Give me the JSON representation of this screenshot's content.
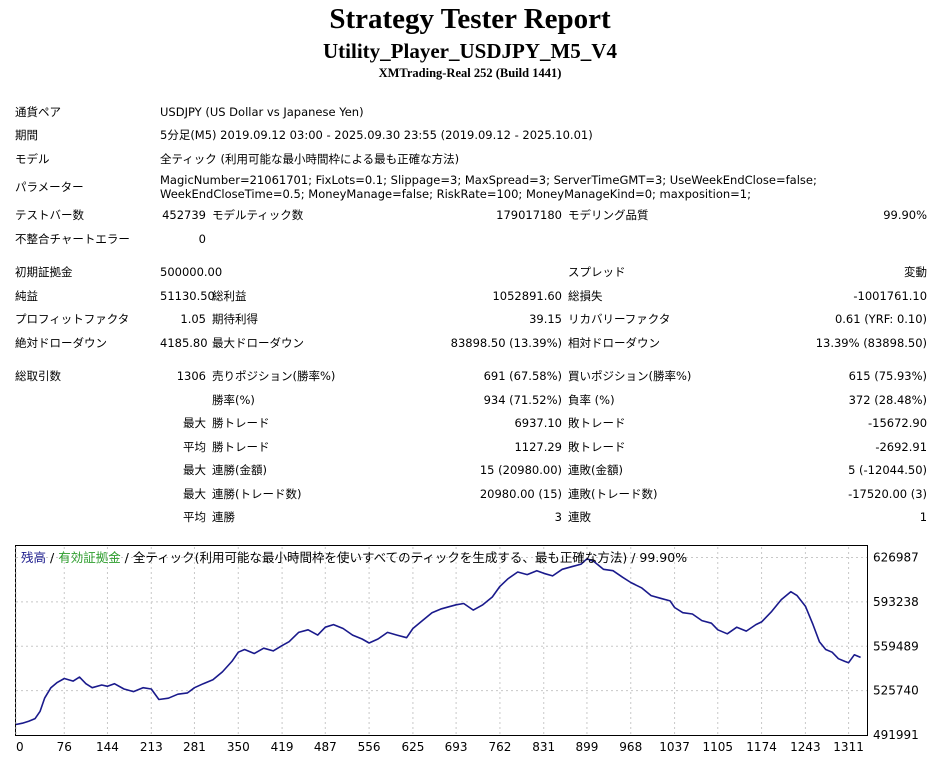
{
  "header": {
    "title": "Strategy Tester Report",
    "subtitle": "Utility_Player_USDJPY_M5_V4",
    "server": "XMTrading-Real 252 (Build 1441)"
  },
  "info": {
    "symbol_label": "通貨ペア",
    "symbol_value": "USDJPY (US Dollar vs Japanese Yen)",
    "period_label": "期間",
    "period_value": "5分足(M5) 2019.09.12 03:00 - 2025.09.30 23:55 (2019.09.12 - 2025.10.01)",
    "model_label": "モデル",
    "model_value": "全ティック (利用可能な最小時間枠による最も正確な方法)",
    "params_label": "パラメーター",
    "params_line1": "MagicNumber=21061701; FixLots=0.1; Slippage=3; MaxSpread=3; ServerTimeGMT=3; UseWeekEndClose=false;",
    "params_line2": "WeekEndCloseTime=0.5; MoneyManage=false; RiskRate=100; MoneyManageKind=0; maxposition=1;"
  },
  "stats": {
    "bars_label": "テストバー数",
    "bars_value": "452739",
    "ticks_label": "モデルティック数",
    "ticks_value": "179017180",
    "quality_label": "モデリング品質",
    "quality_value": "99.90%",
    "mismatch_label": "不整合チャートエラー",
    "mismatch_value": "0",
    "deposit_label": "初期証拠金",
    "deposit_value": "500000.00",
    "spread_label": "スプレッド",
    "spread_value": "変動",
    "net_label": "純益",
    "net_value": "51130.50",
    "gross_profit_label": "総利益",
    "gross_profit_value": "1052891.60",
    "gross_loss_label": "総損失",
    "gross_loss_value": "-1001761.10",
    "pf_label": "プロフィットファクタ",
    "pf_value": "1.05",
    "payoff_label": "期待利得",
    "payoff_value": "39.15",
    "recovery_label": "リカバリーファクタ",
    "recovery_value": "0.61 (YRF: 0.10)",
    "abs_dd_label": "絶対ドローダウン",
    "abs_dd_value": "4185.80",
    "max_dd_label": "最大ドローダウン",
    "max_dd_value": "83898.50 (13.39%)",
    "rel_dd_label": "相対ドローダウン",
    "rel_dd_value": "13.39% (83898.50)",
    "trades_label": "総取引数",
    "trades_value": "1306",
    "short_label": "売りポジション(勝率%)",
    "short_value": "691 (67.58%)",
    "long_label": "買いポジション(勝率%)",
    "long_value": "615 (75.93%)",
    "win_rate_label": "勝率(%)",
    "win_rate_value": "934 (71.52%)",
    "loss_rate_label": "負率 (%)",
    "loss_rate_value": "372 (28.48%)",
    "max_label": "最大",
    "avg_label": "平均",
    "largest_win_label": "勝トレード",
    "largest_win_value": "6937.10",
    "largest_loss_label": "敗トレード",
    "largest_loss_value": "-15672.90",
    "avg_win_label": "勝トレード",
    "avg_win_value": "1127.29",
    "avg_loss_label": "敗トレード",
    "avg_loss_value": "-2692.91",
    "max_cons_wins_label": "連勝(金額)",
    "max_cons_wins_value": "15 (20980.00)",
    "max_cons_losses_label": "連敗(金額)",
    "max_cons_losses_value": "5 (-12044.50)",
    "max_cons_profit_label": "連勝(トレード数)",
    "max_cons_profit_value": "20980.00 (15)",
    "max_cons_loss_label": "連敗(トレード数)",
    "max_cons_loss_value": "-17520.00 (3)",
    "avg_cons_wins_label": "連勝",
    "avg_cons_wins_value": "3",
    "avg_cons_losses_label": "連敗",
    "avg_cons_losses_value": "1"
  },
  "chart_legend": {
    "balance": "残高",
    "sep1": " / ",
    "equity": "有効証拠金",
    "sep2": " / ",
    "model": "全ティック(利用可能な最小時間枠を使いすべてのティックを生成する、最も正確な方法) / 99.90%"
  },
  "colors": {
    "balance_line": "#1a1a8c",
    "equity_label": "#2e9e2e",
    "balance_label": "#1a1a8c",
    "grid": "#c8c8c8"
  },
  "chart_data": {
    "type": "line",
    "title": "",
    "xlabel": "",
    "ylabel": "",
    "x_ticks": [
      0,
      76,
      144,
      213,
      281,
      350,
      419,
      487,
      556,
      625,
      693,
      762,
      831,
      899,
      968,
      1037,
      1105,
      1174,
      1243,
      1311
    ],
    "y_ticks": [
      626987,
      593238,
      559489,
      525740,
      491991
    ],
    "xlim": [
      0,
      1340
    ],
    "ylim": [
      491991,
      635000
    ],
    "grid": true,
    "series": [
      {
        "x": [
          0,
          10,
          20,
          30,
          38,
          45,
          55,
          65,
          76,
          90,
          100,
          110,
          120,
          135,
          144,
          155,
          170,
          185,
          200,
          213,
          225,
          240,
          255,
          270,
          281,
          295,
          310,
          325,
          340,
          350,
          360,
          375,
          390,
          405,
          419,
          430,
          445,
          460,
          475,
          487,
          500,
          515,
          530,
          545,
          556,
          570,
          585,
          600,
          615,
          625,
          640,
          655,
          670,
          685,
          693,
          705,
          720,
          735,
          750,
          762,
          775,
          790,
          805,
          820,
          831,
          845,
          860,
          875,
          890,
          899,
          910,
          925,
          940,
          955,
          968,
          985,
          1000,
          1015,
          1030,
          1037,
          1050,
          1065,
          1080,
          1095,
          1105,
          1120,
          1135,
          1150,
          1165,
          1174,
          1190,
          1205,
          1220,
          1230,
          1243,
          1255,
          1265,
          1275,
          1285,
          1295,
          1305,
          1311,
          1320,
          1330
        ],
        "y": [
          500000,
          501000,
          502500,
          504500,
          510000,
          520000,
          528000,
          532000,
          535000,
          533000,
          536000,
          531000,
          528000,
          530000,
          529000,
          531000,
          527000,
          525000,
          528000,
          527000,
          519000,
          520000,
          523000,
          524000,
          528000,
          531000,
          534000,
          540000,
          548000,
          555000,
          557000,
          554000,
          558000,
          556000,
          560000,
          563000,
          570000,
          572000,
          568000,
          574000,
          576000,
          573000,
          568000,
          565000,
          562000,
          565000,
          570000,
          568000,
          566000,
          573000,
          579000,
          585000,
          588000,
          590000,
          591000,
          592000,
          587000,
          591000,
          597000,
          605000,
          611000,
          616000,
          614000,
          617000,
          615000,
          613000,
          618000,
          620000,
          622000,
          626000,
          624000,
          618000,
          617000,
          612000,
          608000,
          604000,
          598000,
          596000,
          594000,
          589000,
          585000,
          584000,
          579000,
          577000,
          572000,
          569000,
          574000,
          571000,
          576000,
          578000,
          586000,
          595000,
          601000,
          598000,
          590000,
          576000,
          563000,
          557000,
          555000,
          550000,
          548000,
          547000,
          553000,
          551000
        ]
      }
    ]
  }
}
